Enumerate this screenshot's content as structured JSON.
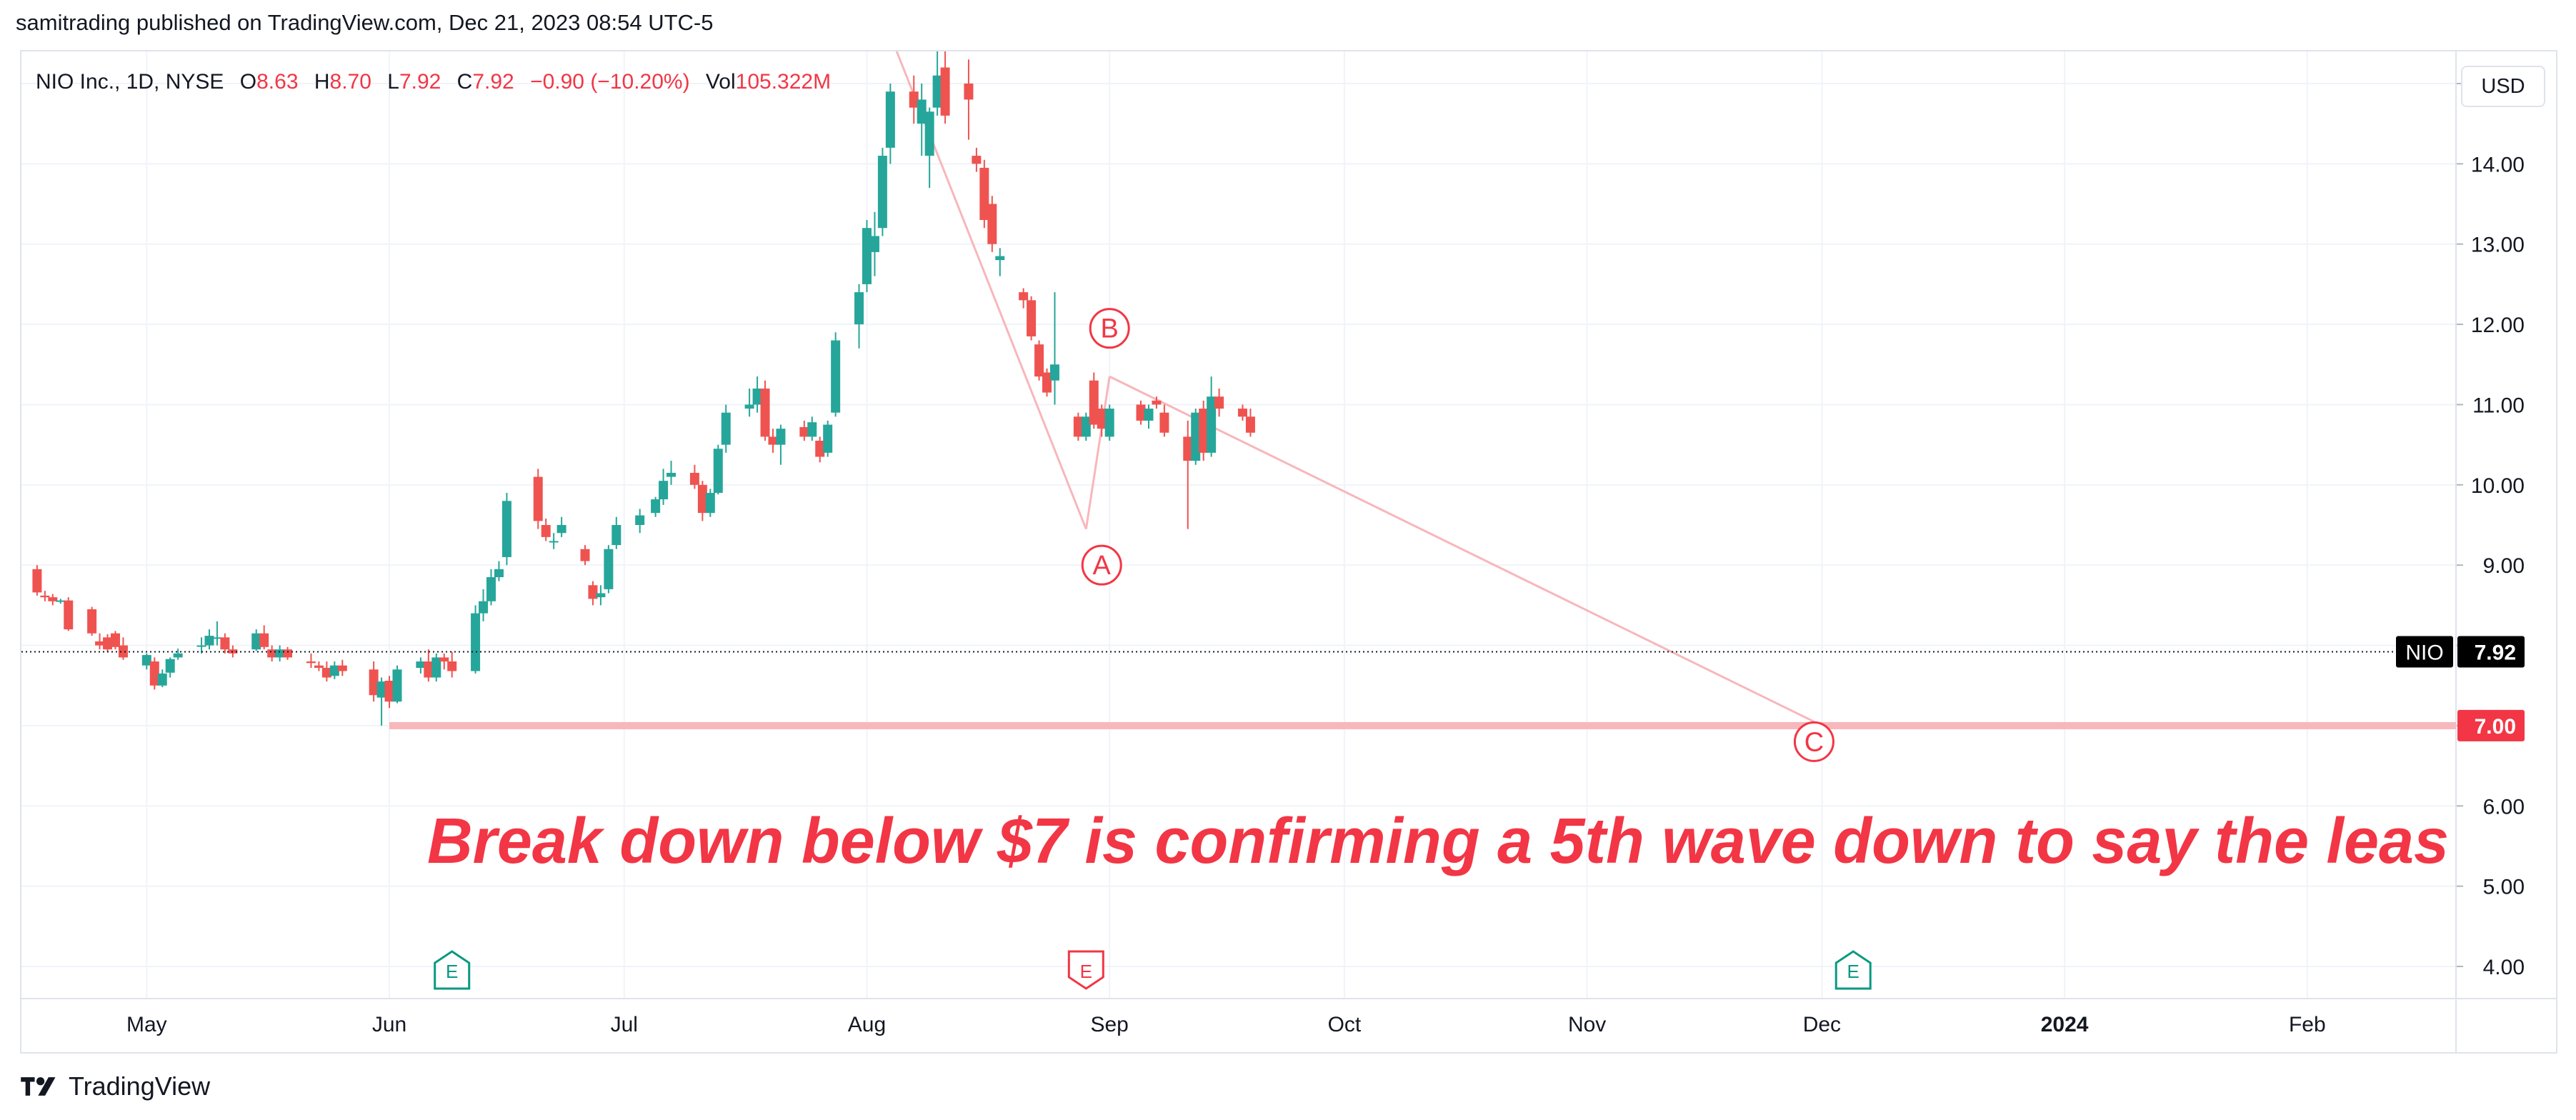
{
  "header": {
    "publisher_line": "samitrading published on TradingView.com, Dec 21, 2023 08:54 UTC-5"
  },
  "legend": {
    "symbol": "NIO Inc., 1D, NYSE",
    "o_label": "O",
    "o_value": "8.63",
    "h_label": "H",
    "h_value": "8.70",
    "l_label": "L",
    "l_value": "7.92",
    "c_label": "C",
    "c_value": "7.92",
    "change": "−0.90 (−10.20%)",
    "vol_label": "Vol",
    "vol_value": "105.322M"
  },
  "currency_button": "USD",
  "footer": {
    "brand": "TradingView"
  },
  "colors": {
    "up": "#26a69a",
    "down": "#ef5350",
    "annotation": "#f23645",
    "support": "#f7b7bb",
    "wave_line": "#f7b7bb",
    "earnings_up": "#089981",
    "earnings_down": "#f23645"
  },
  "chart_data": {
    "type": "candlestick",
    "symbol": "NIO",
    "interval": "1D",
    "exchange": "NYSE",
    "ylim": [
      3.6,
      15.4
    ],
    "y_ticks": [
      "4.00",
      "5.00",
      "6.00",
      "7.00",
      "8.00",
      "9.00",
      "10.00",
      "11.00",
      "12.00",
      "13.00",
      "14.00",
      "15.00"
    ],
    "x_ticks": [
      {
        "label": "May",
        "date": "2023-05-01"
      },
      {
        "label": "Jun",
        "date": "2023-06-01"
      },
      {
        "label": "Jul",
        "date": "2023-07-01"
      },
      {
        "label": "Aug",
        "date": "2023-08-01"
      },
      {
        "label": "Sep",
        "date": "2023-09-01"
      },
      {
        "label": "Oct",
        "date": "2023-10-01"
      },
      {
        "label": "Nov",
        "date": "2023-11-01"
      },
      {
        "label": "Dec",
        "date": "2023-12-01"
      },
      {
        "label": "2024",
        "date": "2024-01-01"
      },
      {
        "label": "Feb",
        "date": "2024-02-01"
      }
    ],
    "x_range": [
      "2023-04-15",
      "2024-02-20"
    ],
    "price_label": {
      "symbol": "NIO",
      "value": "7.92",
      "price": 7.92
    },
    "support_label": {
      "value": "7.00",
      "price": 7.0
    },
    "support_line": {
      "price": 7.0,
      "from": "2023-06-01"
    },
    "annotation": "Break down below $7 is confirming a 5th wave down to say the leas",
    "wave_labels": [
      {
        "label": "A",
        "date": "2023-08-31",
        "price": 9.0
      },
      {
        "label": "B",
        "date": "2023-09-01",
        "price": 11.95
      },
      {
        "label": "C",
        "date": "2023-11-30",
        "price": 6.8
      }
    ],
    "wave_lines": [
      {
        "from": [
          "2023-08-04",
          15.6
        ],
        "to": [
          "2023-08-29",
          9.45
        ]
      },
      {
        "from": [
          "2023-08-29",
          9.45
        ],
        "to": [
          "2023-09-01",
          11.35
        ]
      },
      {
        "from": [
          "2023-09-01",
          11.35
        ],
        "to": [
          "2023-11-30",
          7.05
        ]
      }
    ],
    "earnings_markers": [
      {
        "label": "E",
        "date": "2023-06-09",
        "direction": "up"
      },
      {
        "label": "E",
        "date": "2023-08-29",
        "direction": "down"
      },
      {
        "label": "E",
        "date": "2023-12-05",
        "direction": "up"
      }
    ],
    "candles": [
      [
        "2023-04-17",
        8.95,
        9.0,
        8.62,
        8.66
      ],
      [
        "2023-04-18",
        8.62,
        8.68,
        8.55,
        8.6
      ],
      [
        "2023-04-19",
        8.6,
        8.64,
        8.5,
        8.55
      ],
      [
        "2023-04-20",
        8.55,
        8.58,
        8.52,
        8.56
      ],
      [
        "2023-04-21",
        8.56,
        8.6,
        8.18,
        8.2
      ],
      [
        "2023-04-24",
        8.45,
        8.48,
        8.12,
        8.15
      ],
      [
        "2023-04-25",
        8.05,
        8.15,
        7.95,
        8.0
      ],
      [
        "2023-04-26",
        8.1,
        8.14,
        7.92,
        7.95
      ],
      [
        "2023-04-27",
        8.15,
        8.18,
        7.95,
        7.98
      ],
      [
        "2023-04-28",
        8.0,
        8.1,
        7.82,
        7.85
      ],
      [
        "2023-05-01",
        7.75,
        7.9,
        7.7,
        7.88
      ],
      [
        "2023-05-02",
        7.8,
        7.85,
        7.45,
        7.5
      ],
      [
        "2023-05-03",
        7.5,
        7.7,
        7.48,
        7.65
      ],
      [
        "2023-05-04",
        7.66,
        7.85,
        7.6,
        7.83
      ],
      [
        "2023-05-05",
        7.85,
        7.96,
        7.82,
        7.9
      ],
      [
        "2023-05-08",
        8.0,
        8.1,
        7.9,
        8.0
      ],
      [
        "2023-05-09",
        8.0,
        8.2,
        7.95,
        8.12
      ],
      [
        "2023-05-10",
        8.1,
        8.3,
        8.0,
        8.1
      ],
      [
        "2023-05-11",
        8.1,
        8.15,
        7.9,
        7.95
      ],
      [
        "2023-05-12",
        7.95,
        8.0,
        7.85,
        7.9
      ],
      [
        "2023-05-15",
        7.95,
        8.2,
        7.93,
        8.15
      ],
      [
        "2023-05-16",
        8.15,
        8.25,
        7.95,
        7.98
      ],
      [
        "2023-05-17",
        7.95,
        8.0,
        7.8,
        7.85
      ],
      [
        "2023-05-18",
        7.85,
        8.0,
        7.8,
        7.95
      ],
      [
        "2023-05-19",
        7.95,
        7.98,
        7.82,
        7.85
      ],
      [
        "2023-05-22",
        7.8,
        7.9,
        7.72,
        7.78
      ],
      [
        "2023-05-23",
        7.75,
        7.8,
        7.68,
        7.72
      ],
      [
        "2023-05-24",
        7.72,
        7.8,
        7.55,
        7.6
      ],
      [
        "2023-05-25",
        7.62,
        7.8,
        7.58,
        7.75
      ],
      [
        "2023-05-26",
        7.75,
        7.82,
        7.62,
        7.68
      ],
      [
        "2023-05-30",
        7.7,
        7.8,
        7.3,
        7.38
      ],
      [
        "2023-05-31",
        7.35,
        7.6,
        7.0,
        7.55
      ],
      [
        "2023-06-01",
        7.56,
        7.62,
        7.22,
        7.3
      ],
      [
        "2023-06-02",
        7.3,
        7.75,
        7.28,
        7.7
      ],
      [
        "2023-06-05",
        7.72,
        7.85,
        7.65,
        7.8
      ],
      [
        "2023-06-06",
        7.8,
        7.95,
        7.55,
        7.6
      ],
      [
        "2023-06-07",
        7.6,
        7.9,
        7.55,
        7.85
      ],
      [
        "2023-06-08",
        7.85,
        7.9,
        7.7,
        7.8
      ],
      [
        "2023-06-09",
        7.8,
        7.92,
        7.6,
        7.68
      ],
      [
        "2023-06-12",
        7.68,
        8.5,
        7.65,
        8.4
      ],
      [
        "2023-06-13",
        8.4,
        8.7,
        8.3,
        8.55
      ],
      [
        "2023-06-14",
        8.55,
        8.95,
        8.5,
        8.85
      ],
      [
        "2023-06-15",
        8.85,
        9.05,
        8.8,
        8.95
      ],
      [
        "2023-06-16",
        9.1,
        9.9,
        9.0,
        9.8
      ],
      [
        "2023-06-20",
        10.1,
        10.2,
        9.45,
        9.55
      ],
      [
        "2023-06-21",
        9.5,
        9.58,
        9.3,
        9.35
      ],
      [
        "2023-06-22",
        9.3,
        9.4,
        9.2,
        9.3
      ],
      [
        "2023-06-23",
        9.4,
        9.6,
        9.35,
        9.5
      ],
      [
        "2023-06-26",
        9.2,
        9.25,
        9.0,
        9.05
      ],
      [
        "2023-06-27",
        8.75,
        8.8,
        8.5,
        8.58
      ],
      [
        "2023-06-28",
        8.6,
        8.75,
        8.5,
        8.65
      ],
      [
        "2023-06-29",
        8.7,
        9.25,
        8.65,
        9.2
      ],
      [
        "2023-06-30",
        9.25,
        9.6,
        9.2,
        9.5
      ],
      [
        "2023-07-03",
        9.5,
        9.7,
        9.4,
        9.62
      ],
      [
        "2023-07-05",
        9.65,
        9.85,
        9.6,
        9.82
      ],
      [
        "2023-07-06",
        9.82,
        10.2,
        9.75,
        10.05
      ],
      [
        "2023-07-07",
        10.1,
        10.3,
        10.0,
        10.15
      ],
      [
        "2023-07-10",
        10.15,
        10.25,
        9.95,
        10.0
      ],
      [
        "2023-07-11",
        10.0,
        10.05,
        9.55,
        9.65
      ],
      [
        "2023-07-12",
        9.65,
        9.95,
        9.6,
        9.9
      ],
      [
        "2023-07-13",
        9.9,
        10.5,
        9.88,
        10.45
      ],
      [
        "2023-07-14",
        10.5,
        11.0,
        10.4,
        10.9
      ],
      [
        "2023-07-17",
        10.95,
        11.2,
        10.85,
        11.0
      ],
      [
        "2023-07-18",
        11.0,
        11.35,
        10.9,
        11.2
      ],
      [
        "2023-07-19",
        11.2,
        11.3,
        10.55,
        10.6
      ],
      [
        "2023-07-20",
        10.6,
        10.7,
        10.4,
        10.5
      ],
      [
        "2023-07-21",
        10.5,
        10.75,
        10.25,
        10.7
      ],
      [
        "2023-07-24",
        10.72,
        10.8,
        10.55,
        10.6
      ],
      [
        "2023-07-25",
        10.6,
        10.85,
        10.55,
        10.78
      ],
      [
        "2023-07-26",
        10.55,
        10.6,
        10.28,
        10.35
      ],
      [
        "2023-07-27",
        10.4,
        10.8,
        10.35,
        10.75
      ],
      [
        "2023-07-28",
        10.9,
        11.9,
        10.85,
        11.8
      ],
      [
        "2023-07-31",
        12.0,
        12.5,
        11.7,
        12.4
      ],
      [
        "2023-08-01",
        12.5,
        13.3,
        12.4,
        13.2
      ],
      [
        "2023-08-02",
        12.9,
        13.4,
        12.6,
        13.1
      ],
      [
        "2023-08-03",
        13.2,
        14.2,
        13.1,
        14.1
      ],
      [
        "2023-08-04",
        14.2,
        15.0,
        14.0,
        14.9
      ],
      [
        "2023-08-07",
        14.9,
        15.1,
        14.5,
        14.7
      ],
      [
        "2023-08-08",
        14.5,
        15.0,
        14.1,
        14.8
      ],
      [
        "2023-08-09",
        14.1,
        14.7,
        13.7,
        14.65
      ],
      [
        "2023-08-10",
        14.7,
        15.4,
        14.6,
        15.1
      ],
      [
        "2023-08-11",
        15.2,
        16.2,
        14.5,
        14.6
      ],
      [
        "2023-08-14",
        15.0,
        15.3,
        14.3,
        14.8
      ],
      [
        "2023-08-15",
        14.1,
        14.2,
        13.9,
        14.0
      ],
      [
        "2023-08-16",
        13.95,
        14.05,
        13.2,
        13.3
      ],
      [
        "2023-08-17",
        13.5,
        13.6,
        12.9,
        13.0
      ],
      [
        "2023-08-18",
        12.8,
        12.95,
        12.6,
        12.85
      ],
      [
        "2023-08-21",
        12.4,
        12.45,
        12.2,
        12.3
      ],
      [
        "2023-08-22",
        12.3,
        12.35,
        11.8,
        11.85
      ],
      [
        "2023-08-23",
        11.75,
        11.8,
        11.3,
        11.35
      ],
      [
        "2023-08-24",
        11.4,
        11.45,
        11.1,
        11.15
      ],
      [
        "2023-08-25",
        11.3,
        12.4,
        11.0,
        11.5
      ],
      [
        "2023-08-28",
        10.85,
        10.9,
        10.55,
        10.6
      ],
      [
        "2023-08-29",
        10.6,
        10.9,
        10.55,
        10.85
      ],
      [
        "2023-08-30",
        11.3,
        11.4,
        10.7,
        10.75
      ],
      [
        "2023-08-31",
        10.95,
        11.0,
        10.6,
        10.7
      ],
      [
        "2023-09-01",
        10.6,
        11.0,
        10.55,
        10.95
      ],
      [
        "2023-09-05",
        11.0,
        11.05,
        10.75,
        10.8
      ],
      [
        "2023-09-06",
        10.8,
        11.0,
        10.7,
        10.95
      ],
      [
        "2023-09-07",
        11.05,
        11.1,
        10.95,
        11.0
      ],
      [
        "2023-09-08",
        10.9,
        11.0,
        10.6,
        10.65
      ],
      [
        "2023-09-11",
        10.6,
        10.8,
        9.45,
        10.3
      ],
      [
        "2023-09-12",
        10.3,
        10.95,
        10.25,
        10.9
      ],
      [
        "2023-09-13",
        10.95,
        11.05,
        10.3,
        10.4
      ],
      [
        "2023-09-14",
        10.4,
        11.35,
        10.35,
        11.1
      ],
      [
        "2023-09-15",
        11.1,
        11.2,
        10.85,
        10.95
      ],
      [
        "2023-09-18",
        10.95,
        11.0,
        10.8,
        10.85
      ],
      [
        "2023-09-19",
        10.85,
        10.95,
        10.6,
        10.65
      ]
    ]
  }
}
